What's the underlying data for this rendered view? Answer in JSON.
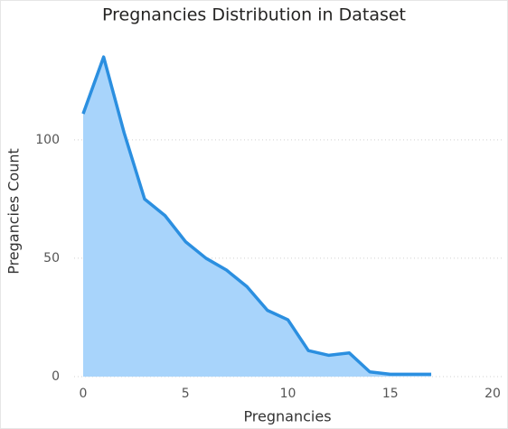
{
  "chart_data": {
    "type": "area",
    "title": "Pregnancies Distribution in Dataset",
    "x_label": "Pregnancies",
    "y_label": "Pregancies Count",
    "x": [
      0,
      1,
      2,
      3,
      4,
      5,
      6,
      7,
      8,
      9,
      10,
      11,
      12,
      13,
      14,
      15,
      17
    ],
    "values": [
      111,
      135,
      103,
      75,
      68,
      57,
      50,
      45,
      38,
      28,
      24,
      11,
      9,
      10,
      2,
      1,
      1
    ],
    "color": "#2b8fe0",
    "fill_color": "#a8d4fb",
    "xlim": [
      0,
      20
    ],
    "xticks": [
      0,
      5,
      10,
      15,
      20
    ],
    "ylim": [
      0,
      140
    ],
    "yticks": [
      0,
      50,
      100
    ],
    "grid": true
  }
}
